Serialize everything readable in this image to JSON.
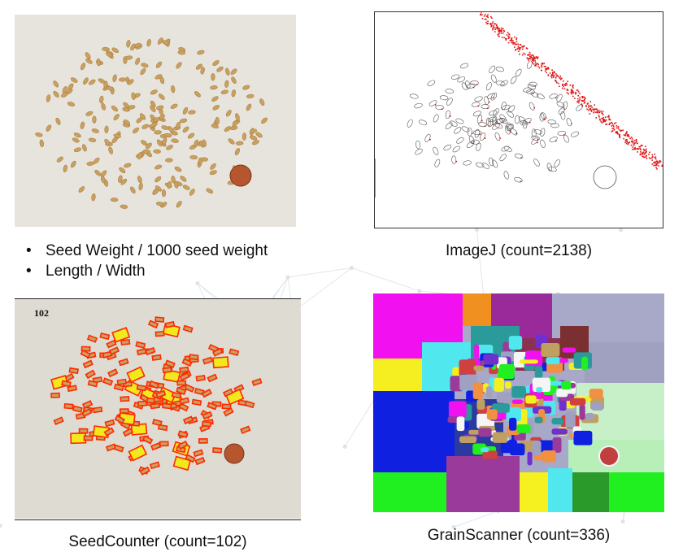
{
  "panels": {
    "seed_photo": {
      "bullets": [
        "Seed Weight / 1000 seed weight",
        "Length / Width"
      ]
    },
    "imagej": {
      "caption": "ImageJ (count=2138)"
    },
    "seedcounter": {
      "caption": "SeedCounter (count=102)",
      "overlay_count": "102"
    },
    "grainscanner": {
      "caption": "GrainScanner (count=336)"
    }
  },
  "colors": {
    "seed": "#c9a060",
    "photo_background": "#e6e4dc",
    "imagej_outline": "#555555",
    "imagej_red": "#e01010",
    "seedcounter_box": "#ff2a00",
    "seedcounter_fill": "#f2e81e",
    "penny": "#b5562e"
  }
}
